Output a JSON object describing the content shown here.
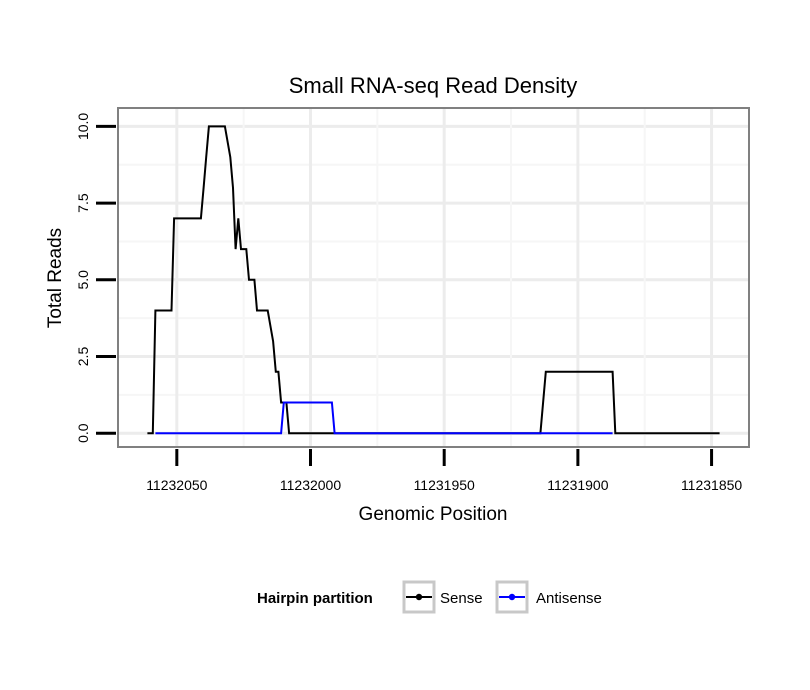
{
  "chart_data": {
    "type": "line",
    "title": "Small RNA-seq Read Density",
    "xlabel": "Genomic Position",
    "ylabel": "Total Reads",
    "xlim": [
      11232072,
      11231836
    ],
    "ylim": [
      -0.45,
      10.6
    ],
    "x_reversed": true,
    "x_ticks": [
      11232050,
      11232000,
      11231950,
      11231900,
      11231850
    ],
    "x_tick_labels": [
      "11232050",
      "11232000",
      "11231950",
      "11231900",
      "11231850"
    ],
    "y_ticks": [
      0,
      2.5,
      5,
      7.5,
      10
    ],
    "y_tick_labels": [
      "0.0",
      "2.5",
      "5.0",
      "7.5",
      "10.0"
    ],
    "grid": true,
    "legend": {
      "title": "Hairpin partition",
      "position": "bottom",
      "entries": [
        "Sense",
        "Antisense"
      ]
    },
    "series": [
      {
        "name": "Sense",
        "color": "#000000",
        "x": [
          11232061,
          11232059,
          11232058,
          11232052,
          11232051,
          11232041,
          11232040,
          11232039,
          11232038,
          11232032,
          11232030,
          11232029,
          11232028,
          11232027,
          11232026,
          11232024,
          11232023,
          11232022,
          11232021,
          11232020,
          11232018,
          11232017,
          11232016,
          11232014,
          11232013,
          11232012,
          11232011,
          11232009,
          11232008,
          11232007,
          11232006,
          11232005,
          11232003,
          11232001,
          11231914,
          11231913,
          11231912,
          11231900,
          11231890,
          11231887,
          11231886,
          11231850,
          11231847
        ],
        "y": [
          0,
          0,
          4,
          4,
          7,
          7,
          8,
          9,
          10,
          10,
          9,
          8,
          6,
          7,
          6,
          6,
          5,
          5,
          5,
          4,
          4,
          4,
          4,
          3,
          2,
          2,
          1,
          1,
          0,
          0,
          0,
          0,
          0,
          0,
          0,
          1,
          2,
          2,
          2,
          2,
          0,
          0,
          0
        ]
      },
      {
        "name": "Antisense",
        "color": "#0000ff",
        "x": [
          11232058,
          11232050,
          11232040,
          11232030,
          11232020,
          11232012,
          11232011,
          11232010,
          11231997,
          11231992,
          11231991,
          11231950,
          11231900,
          11231887
        ],
        "y": [
          0,
          0,
          0,
          0,
          0,
          0,
          0,
          1,
          1,
          1,
          0,
          0,
          0,
          0
        ]
      }
    ]
  }
}
